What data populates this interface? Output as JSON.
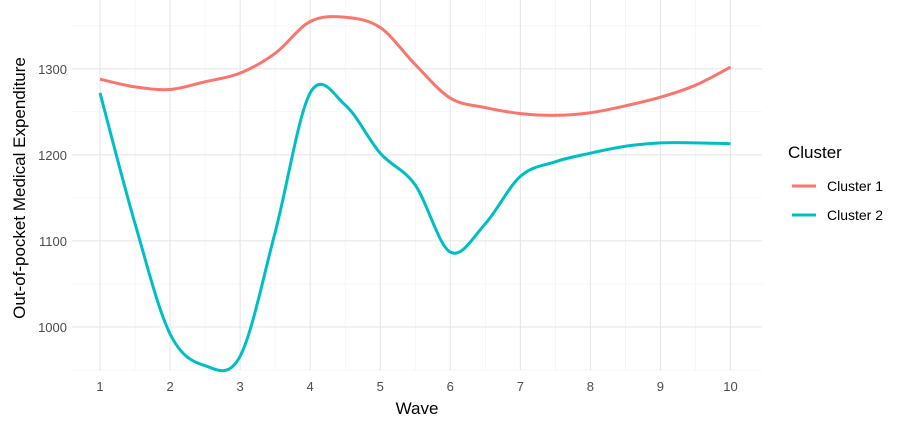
{
  "chart_data": {
    "type": "line",
    "title": "",
    "xlabel": "Wave",
    "ylabel": "Out-of-pocket Medical Expenditure",
    "x": [
      1,
      1.5,
      2,
      2.5,
      3,
      3.5,
      4,
      4.5,
      5,
      5.5,
      6,
      6.5,
      7,
      7.5,
      8,
      8.5,
      9,
      9.5,
      10
    ],
    "x_ticks": [
      "1",
      "2",
      "3",
      "4",
      "5",
      "6",
      "7",
      "8",
      "9",
      "10"
    ],
    "y_ticks": [
      "1000",
      "1100",
      "1200",
      "1300"
    ],
    "xlim": [
      0.6,
      10.45
    ],
    "ylim": [
      950,
      1380
    ],
    "grid": true,
    "legend": {
      "title": "Cluster",
      "placement": "right"
    },
    "series": [
      {
        "name": "Cluster 1",
        "color": "#F8766D",
        "values": [
          1288,
          1279,
          1276,
          1285,
          1295,
          1318,
          1355,
          1360,
          1348,
          1305,
          1266,
          1255,
          1248,
          1246,
          1249,
          1257,
          1267,
          1281,
          1302
        ]
      },
      {
        "name": "Cluster 2",
        "color": "#00BFC4",
        "values": [
          1272,
          1120,
          992,
          955,
          966,
          1110,
          1272,
          1258,
          1202,
          1165,
          1087,
          1120,
          1175,
          1192,
          1202,
          1210,
          1214,
          1214,
          1213
        ]
      }
    ]
  }
}
